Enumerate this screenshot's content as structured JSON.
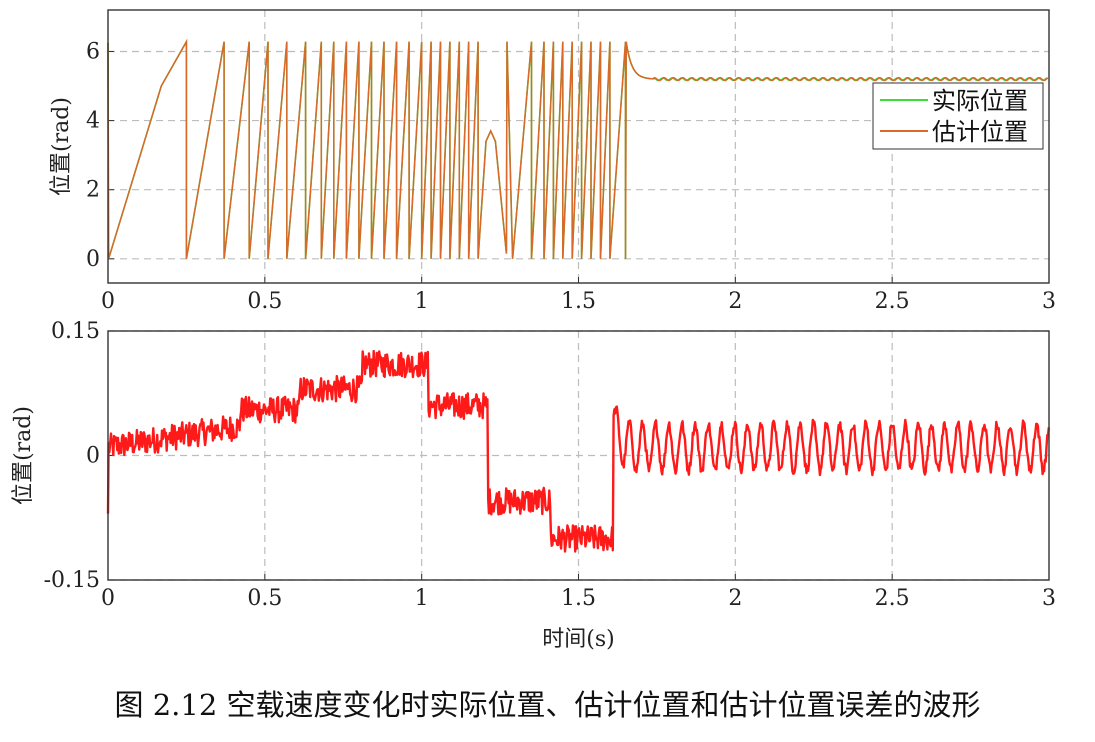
{
  "caption": "图 2.12  空载速度变化时实际位置、估计位置和估计位置误差的波形",
  "chart_data": [
    {
      "type": "line",
      "ylabel": "位置(rad)",
      "xlabel": "",
      "xlim": [
        0,
        3
      ],
      "ylim": [
        -0.7,
        7.2
      ],
      "xticks": [
        0,
        0.5,
        1,
        1.5,
        2,
        2.5,
        3
      ],
      "xtick_labels": [
        "0",
        "0.5",
        "1",
        "1.5",
        "2",
        "2.5",
        "3"
      ],
      "yticks": [
        0,
        2,
        4,
        6
      ],
      "ytick_labels": [
        "0",
        "2",
        "4",
        "6"
      ],
      "grid": true,
      "legend_position": "right",
      "wrap_max": 6.2832,
      "wrap_times": [
        0.25,
        0.37,
        0.45,
        0.51,
        0.57,
        0.63,
        0.68,
        0.72,
        0.76,
        0.8,
        0.84,
        0.88,
        0.92,
        0.96,
        1.0,
        1.03,
        1.06,
        1.09,
        1.12,
        1.15,
        1.18,
        1.29,
        1.35,
        1.39,
        1.42,
        1.45,
        1.48,
        1.51,
        1.54,
        1.57,
        1.6,
        1.65
      ],
      "reversal_time": 1.22,
      "reversal_peak": 3.7,
      "settle_value": 5.2,
      "settle_time": 1.72,
      "series": [
        {
          "name": "实际位置",
          "color": "#3ddc3d"
        },
        {
          "name": "估计位置",
          "color": "#d9682a"
        }
      ]
    },
    {
      "type": "line",
      "ylabel": "位置(rad)",
      "xlabel": "时间(s)",
      "xlim": [
        0,
        3
      ],
      "ylim": [
        -0.15,
        0.15
      ],
      "xticks": [
        0,
        0.5,
        1,
        1.5,
        2,
        2.5,
        3
      ],
      "xtick_labels": [
        "0",
        "0.5",
        "1",
        "1.5",
        "2",
        "2.5",
        "3"
      ],
      "yticks": [
        -0.15,
        0,
        0.15
      ],
      "ytick_labels": [
        "-0.15",
        "0",
        "0.15"
      ],
      "grid": true,
      "levels": [
        {
          "x0": 0.0,
          "x1": 0.42,
          "y0": 0.01,
          "y1": 0.035
        },
        {
          "x0": 0.42,
          "x1": 0.61,
          "y0": 0.055,
          "y1": 0.055
        },
        {
          "x0": 0.61,
          "x1": 0.81,
          "y0": 0.08,
          "y1": 0.08
        },
        {
          "x0": 0.81,
          "x1": 1.02,
          "y0": 0.11,
          "y1": 0.11
        },
        {
          "x0": 1.02,
          "x1": 1.21,
          "y0": 0.06,
          "y1": 0.06
        },
        {
          "x0": 1.21,
          "x1": 1.41,
          "y0": -0.055,
          "y1": -0.055
        },
        {
          "x0": 1.41,
          "x1": 1.61,
          "y0": -0.1,
          "y1": -0.1
        },
        {
          "x0": 1.61,
          "x1": 3.0,
          "y0": 0.01,
          "y1": 0.01
        }
      ],
      "series": [
        {
          "name": "",
          "color": "#ff1a1a"
        }
      ]
    }
  ]
}
